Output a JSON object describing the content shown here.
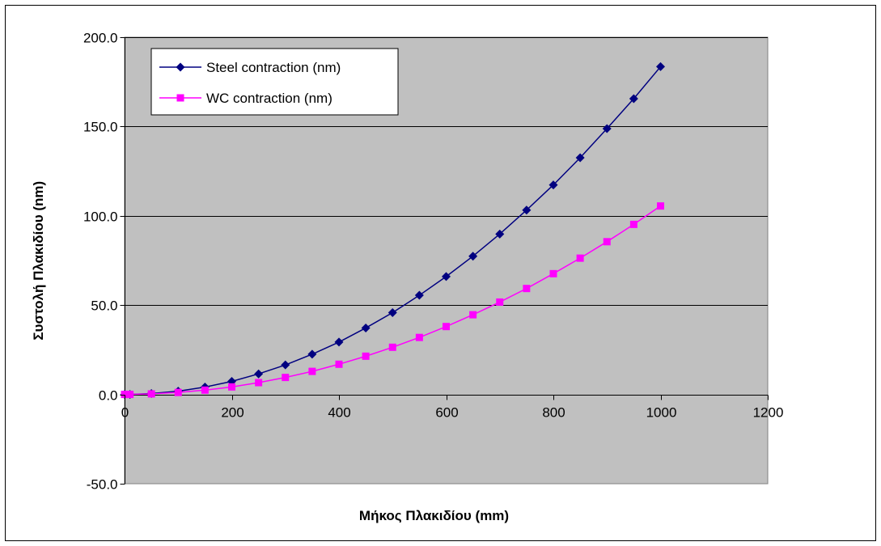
{
  "chart_data": {
    "type": "line",
    "title": "",
    "xlabel": "Μήκος Πλακιδίου (mm)",
    "ylabel": "Συστολή Πλακιδίου (nm)",
    "xlim": [
      0,
      1200
    ],
    "ylim": [
      -50,
      200
    ],
    "x_ticks": [
      0,
      200,
      400,
      600,
      800,
      1000,
      1200
    ],
    "y_ticks": [
      -50,
      0,
      50,
      100,
      150,
      200
    ],
    "x_tick_labels": [
      "0",
      "200",
      "400",
      "600",
      "800",
      "1000",
      "1200"
    ],
    "y_tick_labels": [
      "-50.0",
      "0.0",
      "50.0",
      "100.0",
      "150.0",
      "200.0"
    ],
    "grid": "horizontal",
    "legend_position": "top-left",
    "plot_background": "#c0c0c0",
    "series": [
      {
        "name": "Steel contraction (nm)",
        "color": "#000080",
        "marker": "diamond",
        "x": [
          0,
          10,
          50,
          100,
          150,
          200,
          250,
          300,
          350,
          400,
          450,
          500,
          550,
          600,
          650,
          700,
          750,
          800,
          850,
          900,
          950,
          1000
        ],
        "y": [
          0.0,
          0.0,
          0.5,
          1.8,
          4.1,
          7.3,
          11.5,
          16.5,
          22.5,
          29.3,
          37.2,
          45.8,
          55.5,
          66.0,
          77.4,
          89.8,
          103.2,
          117.3,
          132.5,
          148.8,
          165.6,
          183.5
        ]
      },
      {
        "name": "WC contraction (nm)",
        "color": "#ff00ff",
        "marker": "square",
        "x": [
          0,
          10,
          50,
          100,
          150,
          200,
          250,
          300,
          350,
          400,
          450,
          500,
          550,
          600,
          650,
          700,
          750,
          800,
          850,
          900,
          950,
          1000
        ],
        "y": [
          0.0,
          0.0,
          0.3,
          1.1,
          2.4,
          4.2,
          6.6,
          9.5,
          12.9,
          16.9,
          21.4,
          26.4,
          31.9,
          38.0,
          44.6,
          51.7,
          59.3,
          67.6,
          76.3,
          85.5,
          95.2,
          105.5
        ]
      }
    ]
  }
}
